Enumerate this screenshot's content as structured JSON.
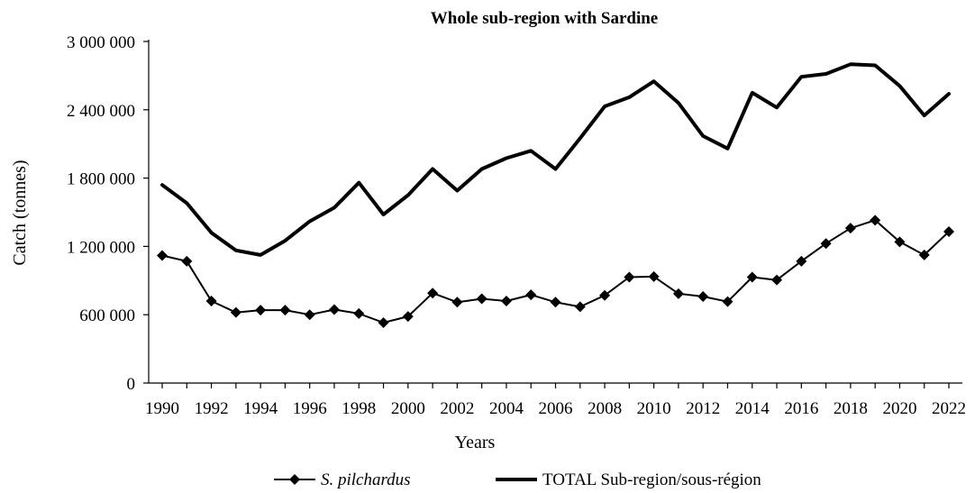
{
  "chart_data": {
    "type": "line",
    "title": "Whole sub-region with Sardine",
    "xlabel": "Years",
    "ylabel": "Catch (tonnes)",
    "ylim": [
      0,
      3000000
    ],
    "yticks": [
      0,
      600000,
      1200000,
      1800000,
      2400000,
      3000000
    ],
    "ytick_labels": [
      "0",
      "600 000",
      "1 200 000",
      "1 800 000",
      "2 400 000",
      "3 000 000"
    ],
    "xticks": [
      1990,
      1992,
      1994,
      1996,
      1998,
      2000,
      2002,
      2004,
      2006,
      2008,
      2010,
      2012,
      2014,
      2016,
      2018,
      2020,
      2022
    ],
    "xtick_labels": [
      "1990",
      "1992",
      "1994",
      "1996",
      "1998",
      "2000",
      "2002",
      "2004",
      "2006",
      "2008",
      "2010",
      "2012",
      "2014",
      "2016",
      "2018",
      "2020",
      "2022"
    ],
    "x": [
      1990,
      1991,
      1992,
      1993,
      1994,
      1995,
      1996,
      1997,
      1998,
      1999,
      2000,
      2001,
      2002,
      2003,
      2004,
      2005,
      2006,
      2007,
      2008,
      2009,
      2010,
      2011,
      2012,
      2013,
      2014,
      2015,
      2016,
      2017,
      2018,
      2019,
      2020,
      2021,
      2022
    ],
    "grid": false,
    "legend_position": "bottom",
    "series": [
      {
        "name_main": "S. pilchardus",
        "name_style": "italic",
        "marker": "diamond",
        "color": "#000000",
        "values": [
          1120000,
          1070000,
          720000,
          620000,
          640000,
          640000,
          600000,
          645000,
          610000,
          530000,
          585000,
          790000,
          710000,
          740000,
          720000,
          775000,
          710000,
          670000,
          770000,
          930000,
          935000,
          785000,
          760000,
          715000,
          930000,
          905000,
          1070000,
          1225000,
          1360000,
          1430000,
          1240000,
          1125000,
          1330000
        ]
      },
      {
        "name_main": "TOTAL Sub-region/sous-région",
        "name_style": "normal",
        "marker": "none",
        "color": "#000000",
        "values": [
          1740000,
          1580000,
          1320000,
          1165000,
          1125000,
          1250000,
          1420000,
          1540000,
          1760000,
          1480000,
          1650000,
          1880000,
          1690000,
          1880000,
          1975000,
          2040000,
          1880000,
          2150000,
          2430000,
          2510000,
          2650000,
          2460000,
          2170000,
          2060000,
          2550000,
          2420000,
          2690000,
          2715000,
          2800000,
          2790000,
          2610000,
          2350000,
          2540000
        ]
      }
    ]
  }
}
